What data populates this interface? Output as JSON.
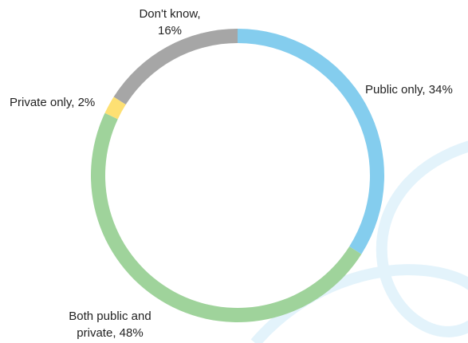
{
  "chart_data": {
    "type": "donut",
    "value_labels": [
      "Public only, 34%",
      "Both public and\nprivate, 48%",
      "Private only, 2%",
      "Don't know,\n16%"
    ],
    "values": [
      34,
      48,
      2,
      16
    ],
    "colors": [
      "#84cdee",
      "#9fd39b",
      "#fde073",
      "#a6a6a6"
    ]
  }
}
